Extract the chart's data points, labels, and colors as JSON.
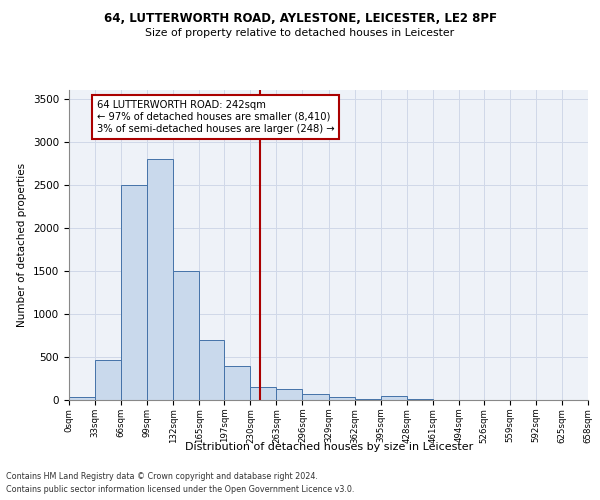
{
  "title1": "64, LUTTERWORTH ROAD, AYLESTONE, LEICESTER, LE2 8PF",
  "title2": "Size of property relative to detached houses in Leicester",
  "xlabel": "Distribution of detached houses by size in Leicester",
  "ylabel": "Number of detached properties",
  "bar_values": [
    30,
    470,
    2500,
    2800,
    1500,
    700,
    400,
    150,
    130,
    75,
    30,
    15,
    50,
    10,
    5,
    5,
    5,
    5,
    5,
    5
  ],
  "bin_edges": [
    0,
    33,
    66,
    99,
    132,
    165,
    197,
    230,
    263,
    296,
    329,
    362,
    395,
    428,
    461,
    494,
    526,
    559,
    592,
    625,
    658
  ],
  "tick_labels": [
    "0sqm",
    "33sqm",
    "66sqm",
    "99sqm",
    "132sqm",
    "165sqm",
    "197sqm",
    "230sqm",
    "263sqm",
    "296sqm",
    "329sqm",
    "362sqm",
    "395sqm",
    "428sqm",
    "461sqm",
    "494sqm",
    "526sqm",
    "559sqm",
    "592sqm",
    "625sqm",
    "658sqm"
  ],
  "property_size": 242,
  "bar_facecolor": "#c9d9ec",
  "bar_edgecolor": "#4472a8",
  "vline_color": "#aa0000",
  "vline_x": 242,
  "annotation_box_color": "#aa0000",
  "annotation_text_line1": "64 LUTTERWORTH ROAD: 242sqm",
  "annotation_text_line2": "← 97% of detached houses are smaller (8,410)",
  "annotation_text_line3": "3% of semi-detached houses are larger (248) →",
  "ylim": [
    0,
    3600
  ],
  "yticks": [
    0,
    500,
    1000,
    1500,
    2000,
    2500,
    3000,
    3500
  ],
  "grid_color": "#d0d8e8",
  "background_color": "#eef2f8",
  "footnote1": "Contains HM Land Registry data © Crown copyright and database right 2024.",
  "footnote2": "Contains public sector information licensed under the Open Government Licence v3.0."
}
